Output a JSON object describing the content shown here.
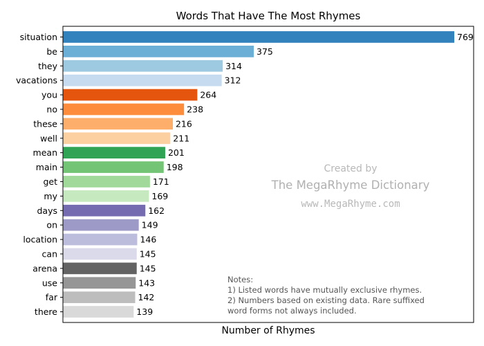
{
  "chart_data": {
    "type": "bar",
    "orientation": "horizontal",
    "title": "Words That Have The Most Rhymes",
    "xlabel": "Number of Rhymes",
    "ylabel": "",
    "xlim": [
      0,
      807
    ],
    "grid": false,
    "legend": "none",
    "categories": [
      "situation",
      "be",
      "they",
      "vacations",
      "you",
      "no",
      "these",
      "well",
      "mean",
      "main",
      "get",
      "my",
      "days",
      "on",
      "location",
      "can",
      "arena",
      "use",
      "far",
      "there"
    ],
    "values": [
      769,
      375,
      314,
      312,
      264,
      238,
      216,
      211,
      201,
      198,
      171,
      169,
      162,
      149,
      146,
      145,
      145,
      143,
      142,
      139
    ],
    "colors": [
      "#3182bd",
      "#6baed6",
      "#9ecae1",
      "#c6dbef",
      "#e6550d",
      "#fd8d3c",
      "#fdae6b",
      "#fdd0a2",
      "#31a354",
      "#74c476",
      "#a1d99b",
      "#c7e9c0",
      "#756bb1",
      "#9e9ac8",
      "#bcbddc",
      "#dadaeb",
      "#636363",
      "#969696",
      "#bdbdbd",
      "#d9d9d9"
    ]
  },
  "watermark": {
    "line1": "Created by",
    "line2": "The MegaRhyme Dictionary",
    "line3": "www.MegaRhyme.com"
  },
  "notes": {
    "line1": "Notes:",
    "line2": "1) Listed words have mutually exclusive rhymes.",
    "line3": "2) Numbers based on existing data. Rare suffixed",
    "line4": "word forms not always included."
  }
}
